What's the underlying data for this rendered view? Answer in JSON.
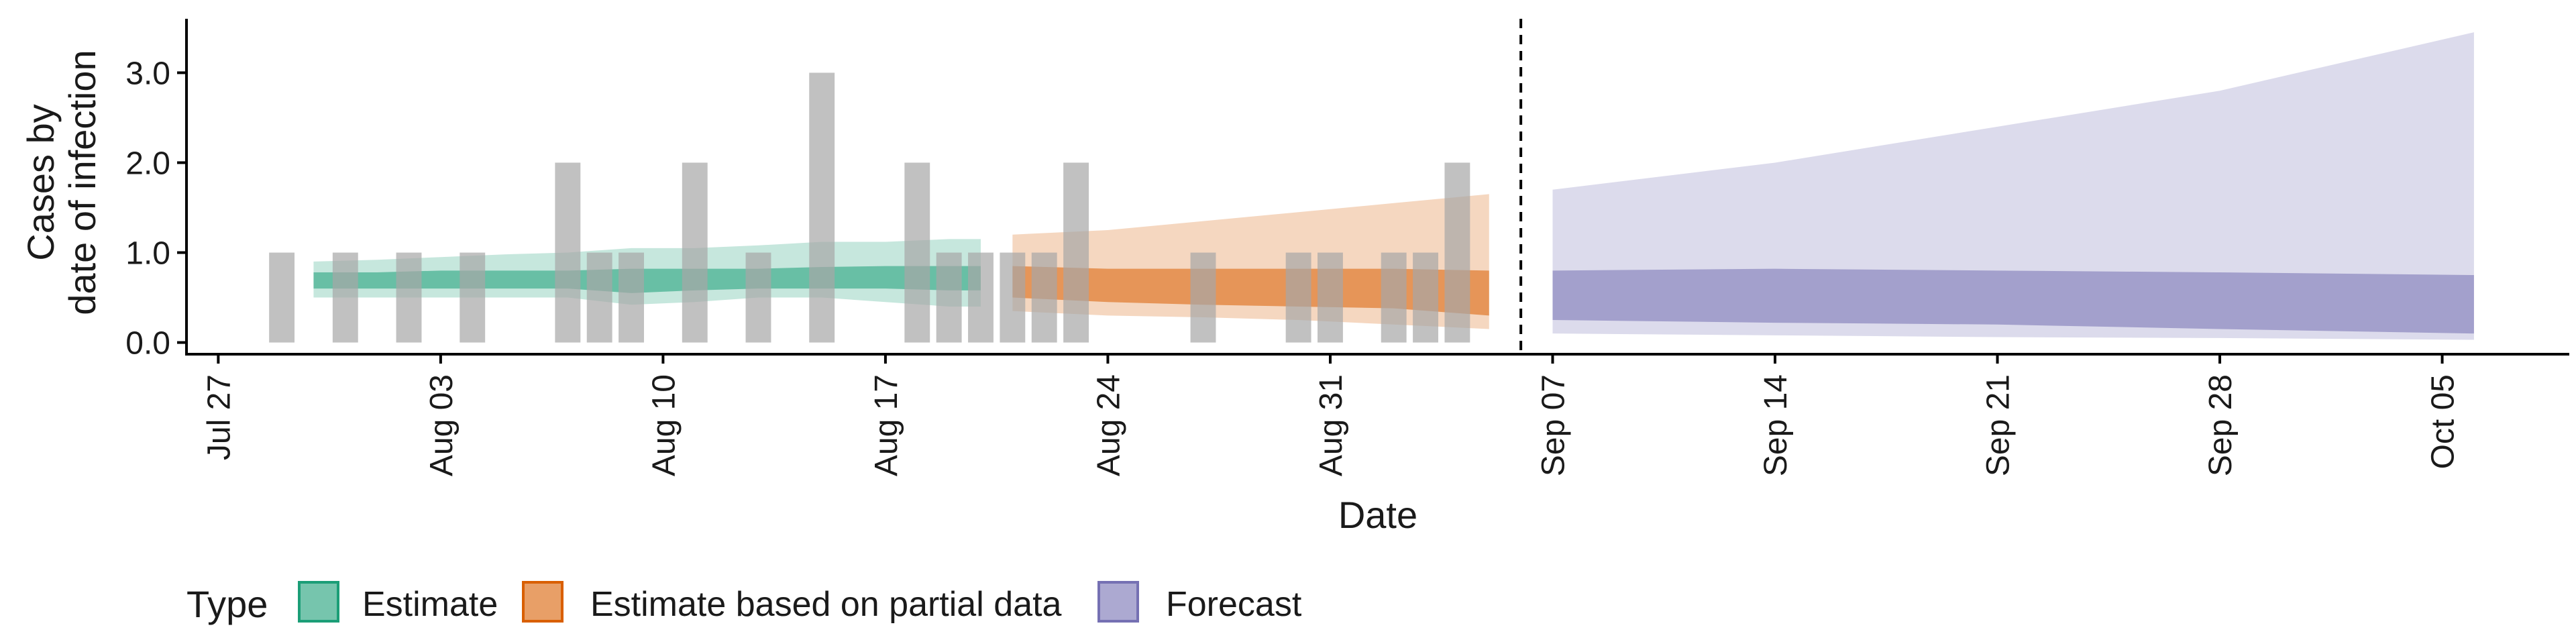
{
  "chart_data": {
    "type": "area",
    "title": "",
    "xlabel": "Date",
    "ylabel_lines": [
      "Cases by",
      "date of infection"
    ],
    "x_range": [
      "2020-07-26",
      "2020-10-09"
    ],
    "ylim": [
      -0.13,
      3.6
    ],
    "y_ticks": [
      0,
      1,
      2,
      3
    ],
    "y_tick_labels": [
      "0.0",
      "1.0",
      "2.0",
      "3.0"
    ],
    "x_ticks": [
      "2020-07-27",
      "2020-08-03",
      "2020-08-10",
      "2020-08-17",
      "2020-08-24",
      "2020-08-31",
      "2020-09-07",
      "2020-09-14",
      "2020-09-21",
      "2020-09-28",
      "2020-10-05"
    ],
    "x_tick_labels": [
      "Jul 27",
      "Aug 03",
      "Aug 10",
      "Aug 17",
      "Aug 24",
      "Aug 31",
      "Sep 07",
      "Sep 14",
      "Sep 21",
      "Sep 28",
      "Oct 05"
    ],
    "grid": false,
    "legend_position": "bottom-left",
    "legend_title": "Type",
    "vline_date": "2020-09-06",
    "observed_cases": {
      "dates": [
        "2020-07-29",
        "2020-07-31",
        "2020-08-02",
        "2020-08-04",
        "2020-08-07",
        "2020-08-08",
        "2020-08-09",
        "2020-08-11",
        "2020-08-13",
        "2020-08-15",
        "2020-08-18",
        "2020-08-19",
        "2020-08-20",
        "2020-08-21",
        "2020-08-22",
        "2020-08-23",
        "2020-08-27",
        "2020-08-30",
        "2020-08-31",
        "2020-09-02",
        "2020-09-03",
        "2020-09-04"
      ],
      "values": [
        1,
        1,
        1,
        1,
        2,
        1,
        1,
        2,
        1,
        3,
        2,
        1,
        1,
        1,
        1,
        2,
        1,
        1,
        1,
        1,
        1,
        2
      ],
      "color": "#a6a6a6"
    },
    "series": [
      {
        "name": "Estimate",
        "color": "#1b9e77",
        "dates": [
          "2020-07-30",
          "2020-08-01",
          "2020-08-03",
          "2020-08-05",
          "2020-08-07",
          "2020-08-09",
          "2020-08-11",
          "2020-08-13",
          "2020-08-15",
          "2020-08-17",
          "2020-08-19",
          "2020-08-20"
        ],
        "lower90": [
          0.5,
          0.5,
          0.5,
          0.5,
          0.5,
          0.42,
          0.45,
          0.5,
          0.5,
          0.45,
          0.4,
          0.4
        ],
        "upper90": [
          0.9,
          0.92,
          0.95,
          0.98,
          1.0,
          1.05,
          1.05,
          1.08,
          1.12,
          1.12,
          1.15,
          1.15
        ],
        "lower50": [
          0.6,
          0.6,
          0.6,
          0.6,
          0.6,
          0.55,
          0.58,
          0.6,
          0.6,
          0.6,
          0.58,
          0.58
        ],
        "upper50": [
          0.78,
          0.78,
          0.8,
          0.8,
          0.8,
          0.82,
          0.82,
          0.82,
          0.84,
          0.85,
          0.85,
          0.85
        ]
      },
      {
        "name": "Estimate based on partial data",
        "color": "#d95f02",
        "dates": [
          "2020-08-21",
          "2020-08-24",
          "2020-08-27",
          "2020-08-30",
          "2020-09-02",
          "2020-09-05"
        ],
        "lower90": [
          0.35,
          0.3,
          0.28,
          0.25,
          0.2,
          0.15
        ],
        "upper90": [
          1.2,
          1.25,
          1.35,
          1.45,
          1.55,
          1.65
        ],
        "lower50": [
          0.5,
          0.45,
          0.42,
          0.4,
          0.38,
          0.3
        ],
        "upper50": [
          0.85,
          0.82,
          0.82,
          0.82,
          0.82,
          0.8
        ]
      },
      {
        "name": "Forecast",
        "color": "#7570b3",
        "dates": [
          "2020-09-07",
          "2020-09-14",
          "2020-09-21",
          "2020-09-28",
          "2020-10-06"
        ],
        "lower90": [
          0.1,
          0.08,
          0.06,
          0.05,
          0.03
        ],
        "upper90": [
          1.7,
          2.0,
          2.4,
          2.8,
          3.45
        ],
        "lower50": [
          0.25,
          0.22,
          0.2,
          0.15,
          0.1
        ],
        "upper50": [
          0.8,
          0.82,
          0.8,
          0.78,
          0.75
        ]
      }
    ]
  }
}
